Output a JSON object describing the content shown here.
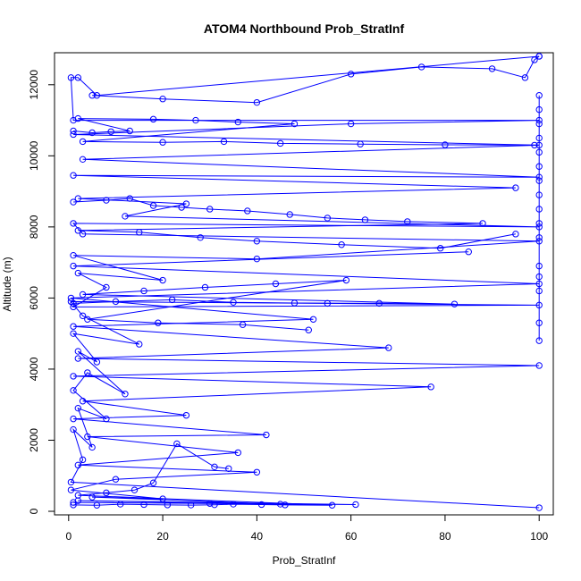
{
  "chart_data": {
    "type": "scatter",
    "title": "ATOM4 Northbound Prob_StratInf",
    "xlabel": "Prob_StratInf",
    "ylabel": "Altitude (m)",
    "xlim": [
      -3,
      103
    ],
    "ylim": [
      -100,
      12900
    ],
    "x_ticks": [
      0,
      20,
      40,
      60,
      80,
      100
    ],
    "y_ticks": [
      0,
      2000,
      4000,
      6000,
      8000,
      10000,
      12000
    ],
    "grid": false,
    "legend": "none",
    "marker": "open-circle",
    "connected": true,
    "color": "#0000ff",
    "series": [
      {
        "values": [
          {
            "x": 100,
            "y": 100
          },
          {
            "x": 0.5,
            "y": 820
          },
          {
            "x": 3,
            "y": 1450
          },
          {
            "x": 1,
            "y": 2300
          },
          {
            "x": 5,
            "y": 1800
          },
          {
            "x": 2,
            "y": 2900
          },
          {
            "x": 8,
            "y": 2600
          },
          {
            "x": 1,
            "y": 3400
          },
          {
            "x": 4,
            "y": 3900
          },
          {
            "x": 12,
            "y": 3300
          },
          {
            "x": 2,
            "y": 4500
          },
          {
            "x": 6,
            "y": 4200
          },
          {
            "x": 1,
            "y": 5000
          },
          {
            "x": 15,
            "y": 4700
          },
          {
            "x": 3,
            "y": 5500
          },
          {
            "x": 0.5,
            "y": 5900
          },
          {
            "x": 55,
            "y": 5850
          },
          {
            "x": 100,
            "y": 5800
          },
          {
            "x": 1,
            "y": 5750
          },
          {
            "x": 8,
            "y": 6300
          },
          {
            "x": 2,
            "y": 6700
          },
          {
            "x": 20,
            "y": 6500
          },
          {
            "x": 1,
            "y": 7200
          },
          {
            "x": 40,
            "y": 7100
          },
          {
            "x": 100,
            "y": 7600
          },
          {
            "x": 3,
            "y": 7800
          },
          {
            "x": 1,
            "y": 8100
          },
          {
            "x": 100,
            "y": 8000
          },
          {
            "x": 12,
            "y": 8300
          },
          {
            "x": 25,
            "y": 8650
          },
          {
            "x": 2,
            "y": 8800
          },
          {
            "x": 95,
            "y": 9100
          },
          {
            "x": 1,
            "y": 9450
          },
          {
            "x": 100,
            "y": 9400
          },
          {
            "x": 3,
            "y": 9900
          },
          {
            "x": 100,
            "y": 10300
          },
          {
            "x": 1,
            "y": 10600
          },
          {
            "x": 60,
            "y": 10900
          },
          {
            "x": 100,
            "y": 11000
          },
          {
            "x": 1,
            "y": 11000
          },
          {
            "x": 0.5,
            "y": 12200
          },
          {
            "x": 2,
            "y": 12200
          },
          {
            "x": 6,
            "y": 11700
          },
          {
            "x": 100,
            "y": 12800
          }
        ]
      },
      {
        "values": [
          {
            "x": 1,
            "y": 250
          },
          {
            "x": 30,
            "y": 220
          },
          {
            "x": 61,
            "y": 190
          },
          {
            "x": 2,
            "y": 300
          },
          {
            "x": 45,
            "y": 200
          },
          {
            "x": 5,
            "y": 400
          },
          {
            "x": 20,
            "y": 350
          },
          {
            "x": 0.5,
            "y": 600
          },
          {
            "x": 10,
            "y": 900
          },
          {
            "x": 40,
            "y": 1100
          },
          {
            "x": 2,
            "y": 1300
          },
          {
            "x": 36,
            "y": 1650
          },
          {
            "x": 4,
            "y": 2100
          },
          {
            "x": 42,
            "y": 2150
          },
          {
            "x": 1,
            "y": 2600
          },
          {
            "x": 25,
            "y": 2700
          },
          {
            "x": 3,
            "y": 3100
          },
          {
            "x": 77,
            "y": 3500
          },
          {
            "x": 1,
            "y": 3800
          },
          {
            "x": 100,
            "y": 4100
          },
          {
            "x": 2,
            "y": 4300
          },
          {
            "x": 68,
            "y": 4600
          },
          {
            "x": 1,
            "y": 5200
          },
          {
            "x": 52,
            "y": 5400
          },
          {
            "x": 0.5,
            "y": 6000
          },
          {
            "x": 100,
            "y": 6400
          },
          {
            "x": 1,
            "y": 6900
          },
          {
            "x": 85,
            "y": 7300
          }
        ]
      },
      {
        "values": [
          {
            "x": 100,
            "y": 11700
          },
          {
            "x": 100,
            "y": 11300
          },
          {
            "x": 100,
            "y": 10900
          },
          {
            "x": 100,
            "y": 10500
          },
          {
            "x": 100,
            "y": 10100
          },
          {
            "x": 100,
            "y": 9700
          },
          {
            "x": 100,
            "y": 9300
          },
          {
            "x": 100,
            "y": 8900
          },
          {
            "x": 100,
            "y": 8500
          },
          {
            "x": 100,
            "y": 8100
          },
          {
            "x": 100,
            "y": 7700
          },
          {
            "x": 100,
            "y": 6900
          },
          {
            "x": 100,
            "y": 6600
          },
          {
            "x": 100,
            "y": 6200
          },
          {
            "x": 100,
            "y": 5300
          },
          {
            "x": 100,
            "y": 4800
          }
        ]
      },
      {
        "values": [
          {
            "x": 1,
            "y": 10700
          },
          {
            "x": 5,
            "y": 10650
          },
          {
            "x": 9,
            "y": 10680
          },
          {
            "x": 13,
            "y": 10700
          },
          {
            "x": 2,
            "y": 11050
          },
          {
            "x": 18,
            "y": 11030
          },
          {
            "x": 27,
            "y": 11000
          },
          {
            "x": 36,
            "y": 10950
          },
          {
            "x": 48,
            "y": 10900
          },
          {
            "x": 3,
            "y": 10400
          },
          {
            "x": 20,
            "y": 10380
          },
          {
            "x": 33,
            "y": 10400
          },
          {
            "x": 45,
            "y": 10350
          },
          {
            "x": 62,
            "y": 10330
          },
          {
            "x": 80,
            "y": 10310
          },
          {
            "x": 99,
            "y": 10300
          }
        ]
      },
      {
        "values": [
          {
            "x": 1,
            "y": 8700
          },
          {
            "x": 8,
            "y": 8750
          },
          {
            "x": 13,
            "y": 8800
          },
          {
            "x": 18,
            "y": 8600
          },
          {
            "x": 24,
            "y": 8550
          },
          {
            "x": 30,
            "y": 8500
          },
          {
            "x": 38,
            "y": 8450
          },
          {
            "x": 47,
            "y": 8350
          },
          {
            "x": 55,
            "y": 8250
          },
          {
            "x": 63,
            "y": 8200
          },
          {
            "x": 72,
            "y": 8150
          },
          {
            "x": 88,
            "y": 8100
          },
          {
            "x": 2,
            "y": 7900
          },
          {
            "x": 15,
            "y": 7850
          },
          {
            "x": 28,
            "y": 7700
          },
          {
            "x": 40,
            "y": 7600
          },
          {
            "x": 58,
            "y": 7500
          },
          {
            "x": 79,
            "y": 7400
          },
          {
            "x": 95,
            "y": 7800
          }
        ]
      },
      {
        "values": [
          {
            "x": 1,
            "y": 5850
          },
          {
            "x": 10,
            "y": 5900
          },
          {
            "x": 22,
            "y": 5950
          },
          {
            "x": 35,
            "y": 5880
          },
          {
            "x": 48,
            "y": 5860
          },
          {
            "x": 66,
            "y": 5850
          },
          {
            "x": 82,
            "y": 5830
          },
          {
            "x": 3,
            "y": 6100
          },
          {
            "x": 16,
            "y": 6200
          },
          {
            "x": 29,
            "y": 6300
          },
          {
            "x": 44,
            "y": 6400
          },
          {
            "x": 59,
            "y": 6500
          },
          {
            "x": 4,
            "y": 5400
          },
          {
            "x": 19,
            "y": 5300
          },
          {
            "x": 37,
            "y": 5250
          },
          {
            "x": 51,
            "y": 5100
          }
        ]
      },
      {
        "values": [
          {
            "x": 1,
            "y": 180
          },
          {
            "x": 6,
            "y": 170
          },
          {
            "x": 11,
            "y": 200
          },
          {
            "x": 16,
            "y": 190
          },
          {
            "x": 21,
            "y": 180
          },
          {
            "x": 26,
            "y": 175
          },
          {
            "x": 31,
            "y": 185
          },
          {
            "x": 35,
            "y": 200
          },
          {
            "x": 41,
            "y": 190
          },
          {
            "x": 46,
            "y": 180
          },
          {
            "x": 56,
            "y": 170
          },
          {
            "x": 2,
            "y": 450
          },
          {
            "x": 8,
            "y": 520
          },
          {
            "x": 14,
            "y": 600
          },
          {
            "x": 18,
            "y": 800
          },
          {
            "x": 23,
            "y": 1900
          },
          {
            "x": 31,
            "y": 1250
          },
          {
            "x": 34,
            "y": 1200
          }
        ]
      },
      {
        "values": [
          {
            "x": 5,
            "y": 11700
          },
          {
            "x": 20,
            "y": 11600
          },
          {
            "x": 40,
            "y": 11500
          },
          {
            "x": 60,
            "y": 12300
          },
          {
            "x": 75,
            "y": 12500
          },
          {
            "x": 90,
            "y": 12450
          },
          {
            "x": 97,
            "y": 12200
          },
          {
            "x": 99,
            "y": 12700
          },
          {
            "x": 100,
            "y": 12800
          }
        ]
      }
    ]
  }
}
